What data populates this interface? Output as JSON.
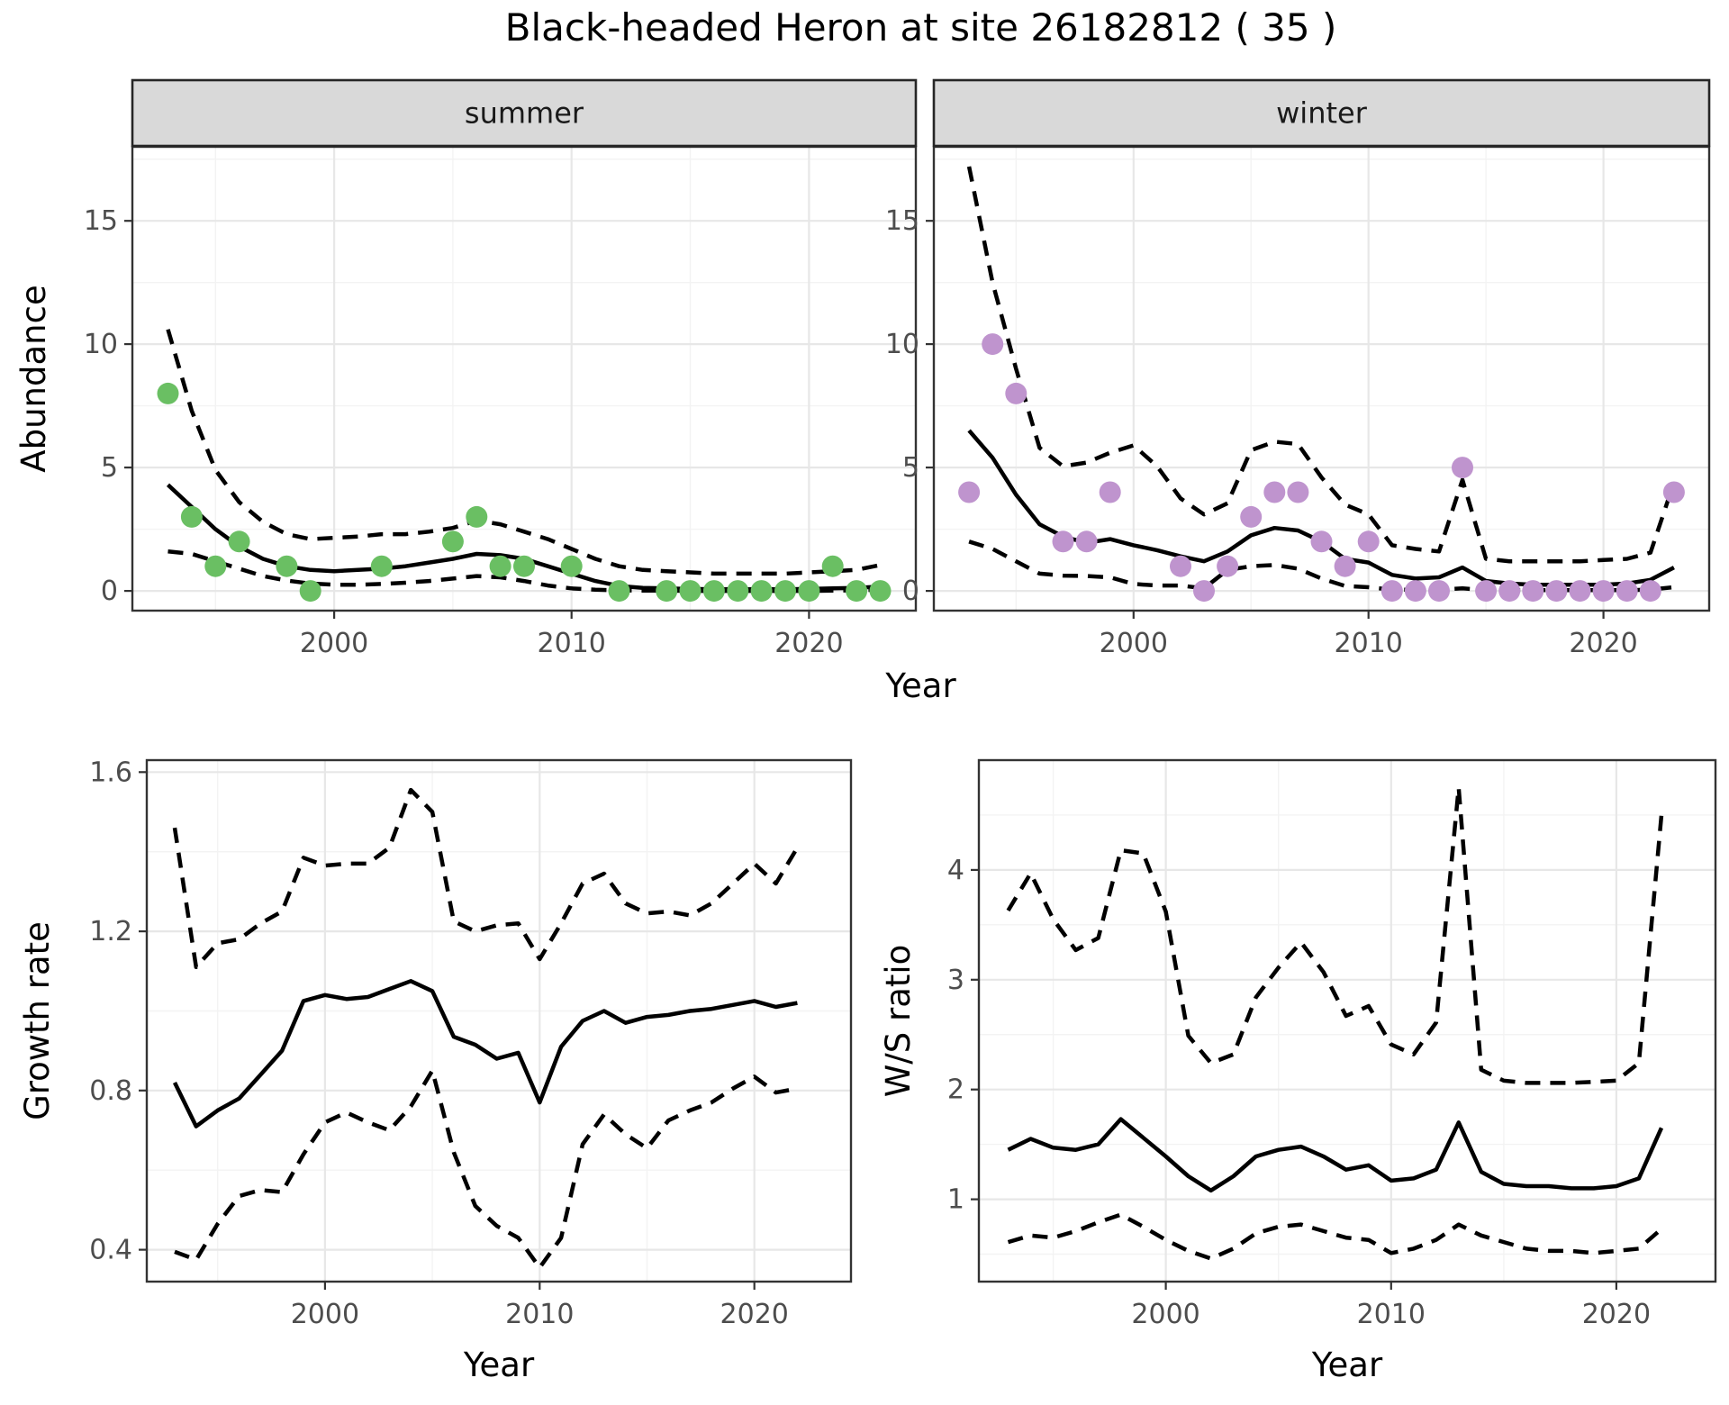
{
  "title": "Black-headed Heron at site 26182812 ( 35 )",
  "style": {
    "summer_point_color": "#6abf63",
    "winter_point_color": "#bf94ce",
    "line_color": "#000000",
    "strip_bg": "#d9d9d9",
    "strip_text_color": "#1a1a1a",
    "grid_major": "#e7e7e7",
    "grid_minor": "#f3f3f3",
    "panel_border": "#333333",
    "tick_label_color": "#4d4d4d",
    "axis_title_color": "#000000"
  },
  "chart_data": [
    {
      "id": "abundance-summer",
      "type": "scatter+line",
      "row": "top",
      "strip_label": "summer",
      "ylabel": "Abundance",
      "xlabel": "Year",
      "xlim": [
        1991.5,
        2024.5
      ],
      "ylim": [
        -0.8,
        18.0
      ],
      "xticks": [
        2000,
        2010,
        2020
      ],
      "xminor": [
        1995,
        2005,
        2015
      ],
      "yticks": [
        0,
        5,
        10,
        15
      ],
      "yminor": [
        2.5,
        7.5,
        12.5,
        17.5
      ],
      "point_color": "#6abf63",
      "points": {
        "years": [
          1993,
          1994,
          1995,
          1996,
          1998,
          1999,
          2002,
          2005,
          2006,
          2007,
          2008,
          2010,
          2012,
          2014,
          2015,
          2016,
          2017,
          2018,
          2019,
          2020,
          2021,
          2022,
          2023
        ],
        "abundance": [
          8,
          3,
          1,
          2,
          1,
          0,
          1,
          2,
          3,
          1,
          1,
          1,
          0,
          0,
          0,
          0,
          0,
          0,
          0,
          0,
          1,
          0,
          0
        ]
      },
      "fit_years": [
        1993,
        1994,
        1995,
        1996,
        1997,
        1998,
        1999,
        2000,
        2001,
        2002,
        2003,
        2004,
        2005,
        2006,
        2007,
        2008,
        2009,
        2010,
        2011,
        2012,
        2013,
        2014,
        2015,
        2016,
        2017,
        2018,
        2019,
        2020,
        2021,
        2022,
        2023
      ],
      "series": [
        {
          "name": "model-fit",
          "style": "solid",
          "values": [
            4.3,
            3.4,
            2.5,
            1.8,
            1.3,
            1.0,
            0.85,
            0.8,
            0.85,
            0.9,
            1.0,
            1.15,
            1.3,
            1.5,
            1.45,
            1.3,
            1.0,
            0.7,
            0.4,
            0.2,
            0.12,
            0.1,
            0.08,
            0.07,
            0.07,
            0.07,
            0.07,
            0.08,
            0.1,
            0.12,
            0.18
          ]
        },
        {
          "name": "upper-ci",
          "style": "dashed",
          "values": [
            10.6,
            7.3,
            4.9,
            3.6,
            2.8,
            2.3,
            2.1,
            2.15,
            2.2,
            2.3,
            2.3,
            2.4,
            2.55,
            2.85,
            2.7,
            2.4,
            2.1,
            1.7,
            1.3,
            1.0,
            0.85,
            0.8,
            0.75,
            0.7,
            0.7,
            0.7,
            0.7,
            0.75,
            0.8,
            0.85,
            1.05
          ]
        },
        {
          "name": "lower-ci",
          "style": "dashed",
          "values": [
            1.6,
            1.5,
            1.2,
            0.9,
            0.6,
            0.42,
            0.3,
            0.25,
            0.25,
            0.28,
            0.33,
            0.4,
            0.5,
            0.6,
            0.55,
            0.4,
            0.22,
            0.1,
            0.05,
            0.02,
            0.01,
            0.01,
            0.0,
            0.0,
            0.0,
            0.0,
            0.0,
            0.0,
            0.01,
            0.02,
            0.05
          ]
        }
      ]
    },
    {
      "id": "abundance-winter",
      "type": "scatter+line",
      "row": "top",
      "strip_label": "winter",
      "ylabel": null,
      "xlabel": "Year",
      "xlim": [
        1991.5,
        2024.5
      ],
      "ylim": [
        -0.8,
        18.0
      ],
      "xticks": [
        2000,
        2010,
        2020
      ],
      "xminor": [
        1995,
        2005,
        2015
      ],
      "yticks": [
        0,
        5,
        10,
        15
      ],
      "yminor": [
        2.5,
        7.5,
        12.5,
        17.5
      ],
      "point_color": "#bf94ce",
      "points": {
        "years": [
          1993,
          1994,
          1995,
          1997,
          1998,
          1999,
          2002,
          2003,
          2004,
          2005,
          2006,
          2007,
          2008,
          2009,
          2010,
          2011,
          2012,
          2013,
          2014,
          2015,
          2016,
          2017,
          2018,
          2019,
          2020,
          2021,
          2022,
          2023
        ],
        "abundance": [
          4,
          10,
          8,
          2,
          2,
          4,
          1,
          0,
          1,
          3,
          4,
          4,
          2,
          1,
          2,
          0,
          0,
          0,
          5,
          0,
          0,
          0,
          0,
          0,
          0,
          0,
          0,
          4
        ]
      },
      "fit_years": [
        1993,
        1994,
        1995,
        1996,
        1997,
        1998,
        1999,
        2000,
        2001,
        2002,
        2003,
        2004,
        2005,
        2006,
        2007,
        2008,
        2009,
        2010,
        2011,
        2012,
        2013,
        2014,
        2015,
        2016,
        2017,
        2018,
        2019,
        2020,
        2021,
        2022,
        2023
      ],
      "series": [
        {
          "name": "model-fit",
          "style": "solid",
          "values": [
            6.5,
            5.4,
            3.9,
            2.7,
            2.2,
            1.95,
            2.1,
            1.85,
            1.65,
            1.4,
            1.2,
            1.6,
            2.25,
            2.55,
            2.45,
            2.0,
            1.3,
            1.15,
            0.65,
            0.5,
            0.55,
            0.95,
            0.4,
            0.3,
            0.25,
            0.25,
            0.25,
            0.25,
            0.3,
            0.45,
            0.95
          ]
        },
        {
          "name": "upper-ci",
          "style": "dashed",
          "values": [
            17.2,
            12.5,
            9.0,
            5.8,
            5.05,
            5.2,
            5.6,
            5.9,
            5.05,
            3.75,
            3.1,
            3.55,
            5.7,
            6.05,
            5.95,
            4.6,
            3.5,
            3.1,
            1.85,
            1.7,
            1.6,
            4.5,
            1.3,
            1.2,
            1.2,
            1.2,
            1.2,
            1.25,
            1.3,
            1.55,
            4.4
          ]
        },
        {
          "name": "lower-ci",
          "style": "dashed",
          "values": [
            2.0,
            1.7,
            1.2,
            0.7,
            0.62,
            0.6,
            0.55,
            0.28,
            0.22,
            0.22,
            0.1,
            0.85,
            1.0,
            1.05,
            0.9,
            0.5,
            0.2,
            0.15,
            0.05,
            0.05,
            0.05,
            0.1,
            0.03,
            0.03,
            0.03,
            0.03,
            0.03,
            0.03,
            0.03,
            0.05,
            0.15
          ]
        }
      ]
    },
    {
      "id": "growth-rate",
      "type": "line",
      "row": "bottom",
      "strip_label": null,
      "ylabel": "Growth rate",
      "xlabel": "Year",
      "xlim": [
        1991.7,
        2024.5
      ],
      "ylim": [
        0.32,
        1.63
      ],
      "xticks": [
        2000,
        2010,
        2020
      ],
      "xminor": [
        1995,
        2005,
        2015
      ],
      "yticks": [
        0.4,
        0.8,
        1.2,
        1.6
      ],
      "yminor": [
        0.6,
        1.0,
        1.4
      ],
      "fit_years": [
        1993,
        1994,
        1995,
        1996,
        1997,
        1998,
        1999,
        2000,
        2001,
        2002,
        2003,
        2004,
        2005,
        2006,
        2007,
        2008,
        2009,
        2010,
        2011,
        2012,
        2013,
        2014,
        2015,
        2016,
        2017,
        2018,
        2019,
        2020,
        2021,
        2022
      ],
      "series": [
        {
          "name": "model-fit",
          "style": "solid",
          "values": [
            0.82,
            0.71,
            0.75,
            0.78,
            0.84,
            0.9,
            1.025,
            1.04,
            1.03,
            1.035,
            1.055,
            1.075,
            1.05,
            0.935,
            0.915,
            0.88,
            0.895,
            0.77,
            0.91,
            0.975,
            1.0,
            0.97,
            0.985,
            0.99,
            1.0,
            1.005,
            1.015,
            1.025,
            1.01,
            1.02
          ]
        },
        {
          "name": "upper-ci",
          "style": "dashed",
          "values": [
            1.46,
            1.11,
            1.17,
            1.18,
            1.22,
            1.25,
            1.385,
            1.365,
            1.37,
            1.37,
            1.41,
            1.555,
            1.5,
            1.225,
            1.2,
            1.215,
            1.22,
            1.13,
            1.22,
            1.32,
            1.345,
            1.27,
            1.245,
            1.25,
            1.24,
            1.27,
            1.32,
            1.37,
            1.32,
            1.41
          ]
        },
        {
          "name": "lower-ci",
          "style": "dashed",
          "values": [
            0.395,
            0.375,
            0.465,
            0.535,
            0.55,
            0.545,
            0.64,
            0.72,
            0.745,
            0.72,
            0.7,
            0.76,
            0.85,
            0.645,
            0.51,
            0.46,
            0.43,
            0.355,
            0.43,
            0.665,
            0.74,
            0.69,
            0.655,
            0.725,
            0.75,
            0.77,
            0.805,
            0.835,
            0.795,
            0.805
          ]
        }
      ]
    },
    {
      "id": "ws-ratio",
      "type": "line",
      "row": "bottom",
      "strip_label": null,
      "ylabel": "W/S ratio",
      "xlabel": "Year",
      "xlim": [
        1991.7,
        2024.4
      ],
      "ylim": [
        0.25,
        5.0
      ],
      "xticks": [
        2000,
        2010,
        2020
      ],
      "xminor": [
        1995,
        2005,
        2015
      ],
      "yticks": [
        1,
        2,
        3,
        4
      ],
      "yminor": [
        0.5,
        1.5,
        2.5,
        3.5,
        4.5
      ],
      "fit_years": [
        1993,
        1994,
        1995,
        1996,
        1997,
        1998,
        1999,
        2000,
        2001,
        2002,
        2003,
        2004,
        2005,
        2006,
        2007,
        2008,
        2009,
        2010,
        2011,
        2012,
        2013,
        2014,
        2015,
        2016,
        2017,
        2018,
        2019,
        2020,
        2021,
        2022
      ],
      "series": [
        {
          "name": "model-fit",
          "style": "solid",
          "values": [
            1.45,
            1.55,
            1.47,
            1.45,
            1.5,
            1.73,
            1.56,
            1.39,
            1.21,
            1.08,
            1.21,
            1.39,
            1.45,
            1.48,
            1.39,
            1.27,
            1.31,
            1.17,
            1.19,
            1.27,
            1.7,
            1.25,
            1.14,
            1.12,
            1.12,
            1.1,
            1.1,
            1.12,
            1.19,
            1.65
          ]
        },
        {
          "name": "upper-ci",
          "style": "dashed",
          "values": [
            3.63,
            3.97,
            3.55,
            3.27,
            3.38,
            4.18,
            4.15,
            3.62,
            2.49,
            2.24,
            2.32,
            2.84,
            3.11,
            3.34,
            3.07,
            2.67,
            2.76,
            2.41,
            2.32,
            2.61,
            4.75,
            2.18,
            2.08,
            2.06,
            2.06,
            2.06,
            2.07,
            2.08,
            2.24,
            4.5
          ]
        },
        {
          "name": "lower-ci",
          "style": "dashed",
          "values": [
            0.61,
            0.67,
            0.65,
            0.71,
            0.79,
            0.86,
            0.75,
            0.63,
            0.53,
            0.46,
            0.55,
            0.69,
            0.75,
            0.77,
            0.71,
            0.65,
            0.63,
            0.51,
            0.55,
            0.63,
            0.77,
            0.67,
            0.61,
            0.55,
            0.53,
            0.53,
            0.51,
            0.53,
            0.55,
            0.73
          ]
        }
      ]
    }
  ]
}
